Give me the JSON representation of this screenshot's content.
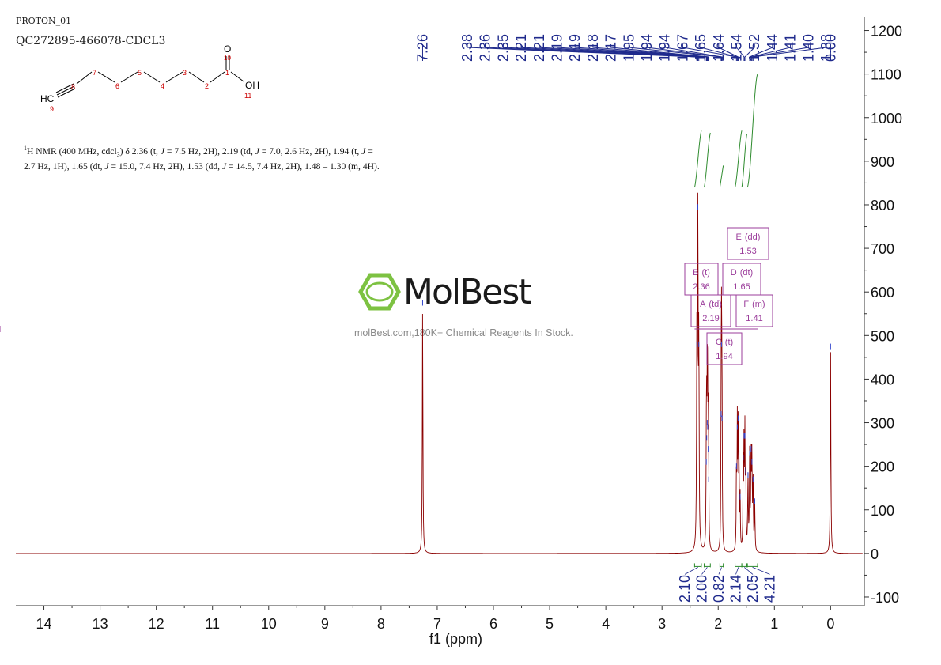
{
  "header": {
    "experiment": "PROTON_01",
    "sample": "QC272895-466078-CDCL3"
  },
  "structure": {
    "atoms": [
      {
        "id": "hc",
        "label": "HC"
      },
      {
        "id": "n9",
        "label": "9"
      },
      {
        "id": "n8",
        "label": "8"
      },
      {
        "id": "n7",
        "label": "7"
      },
      {
        "id": "n6",
        "label": "6"
      },
      {
        "id": "n5",
        "label": "5"
      },
      {
        "id": "n4",
        "label": "4"
      },
      {
        "id": "n3",
        "label": "3"
      },
      {
        "id": "n2",
        "label": "2"
      },
      {
        "id": "n1",
        "label": "1"
      },
      {
        "id": "o",
        "label": "O"
      },
      {
        "id": "n10",
        "label": "10"
      },
      {
        "id": "oh",
        "label": "OH"
      },
      {
        "id": "n11",
        "label": "11"
      }
    ]
  },
  "description": {
    "segments": [
      {
        "t": "1",
        "style": "sup"
      },
      {
        "t": "H NMR (400 MHz, cdcl"
      },
      {
        "t": "3",
        "style": "sub"
      },
      {
        "t": ") δ 2.36 (t, "
      },
      {
        "t": "J",
        "style": "i"
      },
      {
        "t": " = 7.5 Hz, 2H), 2.19 (td, "
      },
      {
        "t": "J",
        "style": "i"
      },
      {
        "t": " = 7.0, 2.6 Hz, 2H), 1.94 (t, "
      },
      {
        "t": "J",
        "style": "i"
      },
      {
        "t": " = 2.7 Hz, 1H), 1.65 (dt, "
      },
      {
        "t": "J",
        "style": "i"
      },
      {
        "t": " = 15.0, 7.4 Hz, 2H), 1.53 (dd, "
      },
      {
        "t": "J",
        "style": "i"
      },
      {
        "t": " = 14.5, 7.4 Hz, 2H), 1.48 – 1.30 (m, 4H)."
      }
    ]
  },
  "watermark": {
    "brand": "MolBest",
    "tagline": "molBest.com,180K+ Chemical Reagents In Stock."
  },
  "colors": {
    "spectrum": "#8b0000",
    "peak_labels": "#1f2a8c",
    "integral": "#2e8b2e",
    "multiplet_box": "#9b3d9b",
    "axis": "#333333",
    "logo": "#7dc242"
  },
  "chart_data": {
    "type": "line",
    "xlabel": "f1 (ppm)",
    "ylabel": "",
    "xlim": [
      14.5,
      -0.6
    ],
    "ylim": [
      -120,
      1230
    ],
    "reversed_x": true,
    "x_ticks": [
      "14",
      "13",
      "12",
      "11",
      "10",
      "9",
      "8",
      "7",
      "6",
      "5",
      "4",
      "3",
      "2",
      "1",
      "0"
    ],
    "y_ticks": [
      "1200",
      "1100",
      "1000",
      "900",
      "800",
      "700",
      "600",
      "500",
      "400",
      "300",
      "200",
      "100",
      "0",
      "-100"
    ],
    "peaks": [
      {
        "ppm": 7.26,
        "height": 565,
        "w": 0.006
      },
      {
        "ppm": 2.38,
        "height": 470,
        "w": 0.006
      },
      {
        "ppm": 2.362,
        "height": 785,
        "w": 0.006
      },
      {
        "ppm": 2.345,
        "height": 470,
        "w": 0.006
      },
      {
        "ppm": 2.212,
        "height": 200,
        "w": 0.005
      },
      {
        "ppm": 2.205,
        "height": 255,
        "w": 0.005
      },
      {
        "ppm": 2.195,
        "height": 290,
        "w": 0.005
      },
      {
        "ppm": 2.188,
        "height": 280,
        "w": 0.005
      },
      {
        "ppm": 2.178,
        "height": 230,
        "w": 0.005
      },
      {
        "ppm": 2.17,
        "height": 160,
        "w": 0.005
      },
      {
        "ppm": 1.948,
        "height": 310,
        "w": 0.005
      },
      {
        "ppm": 1.94,
        "height": 470,
        "w": 0.005
      },
      {
        "ppm": 1.932,
        "height": 300,
        "w": 0.005
      },
      {
        "ppm": 1.675,
        "height": 190,
        "w": 0.005
      },
      {
        "ppm": 1.66,
        "height": 280,
        "w": 0.005
      },
      {
        "ppm": 1.645,
        "height": 300,
        "w": 0.005
      },
      {
        "ppm": 1.63,
        "height": 220,
        "w": 0.005
      },
      {
        "ppm": 1.61,
        "height": 120,
        "w": 0.005
      },
      {
        "ppm": 1.555,
        "height": 210,
        "w": 0.005
      },
      {
        "ppm": 1.54,
        "height": 260,
        "w": 0.005
      },
      {
        "ppm": 1.525,
        "height": 260,
        "w": 0.005
      },
      {
        "ppm": 1.51,
        "height": 180,
        "w": 0.005
      },
      {
        "ppm": 1.47,
        "height": 170,
        "w": 0.006
      },
      {
        "ppm": 1.44,
        "height": 220,
        "w": 0.006
      },
      {
        "ppm": 1.415,
        "height": 230,
        "w": 0.006
      },
      {
        "ppm": 1.4,
        "height": 200,
        "w": 0.006
      },
      {
        "ppm": 1.38,
        "height": 160,
        "w": 0.006
      },
      {
        "ppm": 1.35,
        "height": 110,
        "w": 0.006
      },
      {
        "ppm": 0.0,
        "height": 465,
        "w": 0.006
      }
    ],
    "peak_labels": [
      {
        "text": "7.26",
        "ppm": 7.26
      },
      {
        "text": "2.38",
        "ppm": 2.38
      },
      {
        "text": "2.36",
        "ppm": 2.362
      },
      {
        "text": "2.35",
        "ppm": 2.345
      },
      {
        "text": "2.21",
        "ppm": 2.212
      },
      {
        "text": "2.21",
        "ppm": 2.205
      },
      {
        "text": "2.19",
        "ppm": 2.195
      },
      {
        "text": "2.19",
        "ppm": 2.188
      },
      {
        "text": "2.18",
        "ppm": 2.178
      },
      {
        "text": "2.17",
        "ppm": 2.17
      },
      {
        "text": "1.95",
        "ppm": 1.948
      },
      {
        "text": "1.94",
        "ppm": 1.94
      },
      {
        "text": "1.94",
        "ppm": 1.932
      },
      {
        "text": "1.67",
        "ppm": 1.675
      },
      {
        "text": "1.65",
        "ppm": 1.66
      },
      {
        "text": "1.64",
        "ppm": 1.645
      },
      {
        "text": "1.54",
        "ppm": 1.54
      },
      {
        "text": "1.52",
        "ppm": 1.525
      },
      {
        "text": "1.44",
        "ppm": 1.44
      },
      {
        "text": "1.41",
        "ppm": 1.415
      },
      {
        "text": "1.40",
        "ppm": 1.4
      },
      {
        "text": "1.38",
        "ppm": 1.38
      },
      {
        "text": "0.00",
        "ppm": 0.0
      }
    ],
    "integrals": [
      {
        "value": "2.10",
        "from": 2.42,
        "to": 2.3
      },
      {
        "value": "2.00",
        "from": 2.25,
        "to": 2.14
      },
      {
        "value": "0.82",
        "from": 1.97,
        "to": 1.91
      },
      {
        "value": "2.14",
        "from": 1.7,
        "to": 1.58
      },
      {
        "value": "2.05",
        "from": 1.58,
        "to": 1.49
      },
      {
        "value": "4.21",
        "from": 1.48,
        "to": 1.3
      }
    ],
    "multiplets": [
      {
        "letter": "A",
        "mult": "(td)",
        "shift": "2.19"
      },
      {
        "letter": "B",
        "mult": "(t)",
        "shift": "2.36"
      },
      {
        "letter": "C",
        "mult": "(t)",
        "shift": "1.94"
      },
      {
        "letter": "D",
        "mult": "(dt)",
        "shift": "1.65"
      },
      {
        "letter": "E",
        "mult": "(dd)",
        "shift": "1.53"
      },
      {
        "letter": "F",
        "mult": "(m)",
        "shift": "1.41"
      }
    ]
  }
}
